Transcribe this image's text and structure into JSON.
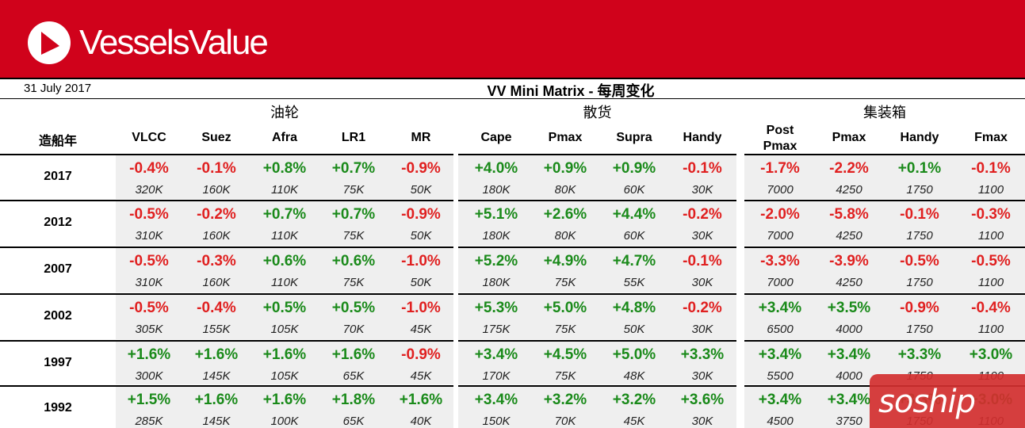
{
  "header": {
    "brand": "VesselsValue",
    "date": "31 July 2017",
    "title": "VV Mini Matrix - 每周变化"
  },
  "table": {
    "year_header": "造船年",
    "groups": [
      {
        "label": "油轮",
        "columns": [
          "VLCC",
          "Suez",
          "Afra",
          "LR1",
          "MR"
        ]
      },
      {
        "label": "散货",
        "columns": [
          "Cape",
          "Pmax",
          "Supra",
          "Handy"
        ]
      },
      {
        "label": "集装箱",
        "columns": [
          "Post\nPmax",
          "Pmax",
          "Handy",
          "Fmax"
        ]
      }
    ],
    "rows": [
      {
        "year": "2017",
        "tanker": [
          [
            "-0.4%",
            "320K"
          ],
          [
            "-0.1%",
            "160K"
          ],
          [
            "+0.8%",
            "110K"
          ],
          [
            "+0.7%",
            "75K"
          ],
          [
            "-0.9%",
            "50K"
          ]
        ],
        "bulk": [
          [
            "+4.0%",
            "180K"
          ],
          [
            "+0.9%",
            "80K"
          ],
          [
            "+0.9%",
            "60K"
          ],
          [
            "-0.1%",
            "30K"
          ]
        ],
        "container": [
          [
            "-1.7%",
            "7000"
          ],
          [
            "-2.2%",
            "4250"
          ],
          [
            "+0.1%",
            "1750"
          ],
          [
            "-0.1%",
            "1100"
          ]
        ]
      },
      {
        "year": "2012",
        "tanker": [
          [
            "-0.5%",
            "310K"
          ],
          [
            "-0.2%",
            "160K"
          ],
          [
            "+0.7%",
            "110K"
          ],
          [
            "+0.7%",
            "75K"
          ],
          [
            "-0.9%",
            "50K"
          ]
        ],
        "bulk": [
          [
            "+5.1%",
            "180K"
          ],
          [
            "+2.6%",
            "80K"
          ],
          [
            "+4.4%",
            "60K"
          ],
          [
            "-0.2%",
            "30K"
          ]
        ],
        "container": [
          [
            "-2.0%",
            "7000"
          ],
          [
            "-5.8%",
            "4250"
          ],
          [
            "-0.1%",
            "1750"
          ],
          [
            "-0.3%",
            "1100"
          ]
        ]
      },
      {
        "year": "2007",
        "tanker": [
          [
            "-0.5%",
            "310K"
          ],
          [
            "-0.3%",
            "160K"
          ],
          [
            "+0.6%",
            "110K"
          ],
          [
            "+0.6%",
            "75K"
          ],
          [
            "-1.0%",
            "50K"
          ]
        ],
        "bulk": [
          [
            "+5.2%",
            "180K"
          ],
          [
            "+4.9%",
            "75K"
          ],
          [
            "+4.7%",
            "55K"
          ],
          [
            "-0.1%",
            "30K"
          ]
        ],
        "container": [
          [
            "-3.3%",
            "7000"
          ],
          [
            "-3.9%",
            "4250"
          ],
          [
            "-0.5%",
            "1750"
          ],
          [
            "-0.5%",
            "1100"
          ]
        ]
      },
      {
        "year": "2002",
        "tanker": [
          [
            "-0.5%",
            "305K"
          ],
          [
            "-0.4%",
            "155K"
          ],
          [
            "+0.5%",
            "105K"
          ],
          [
            "+0.5%",
            "70K"
          ],
          [
            "-1.0%",
            "45K"
          ]
        ],
        "bulk": [
          [
            "+5.3%",
            "175K"
          ],
          [
            "+5.0%",
            "75K"
          ],
          [
            "+4.8%",
            "50K"
          ],
          [
            "-0.2%",
            "30K"
          ]
        ],
        "container": [
          [
            "+3.4%",
            "6500"
          ],
          [
            "+3.5%",
            "4000"
          ],
          [
            "-0.9%",
            "1750"
          ],
          [
            "-0.4%",
            "1100"
          ]
        ]
      },
      {
        "year": "1997",
        "tanker": [
          [
            "+1.6%",
            "300K"
          ],
          [
            "+1.6%",
            "145K"
          ],
          [
            "+1.6%",
            "105K"
          ],
          [
            "+1.6%",
            "65K"
          ],
          [
            "-0.9%",
            "45K"
          ]
        ],
        "bulk": [
          [
            "+3.4%",
            "170K"
          ],
          [
            "+4.5%",
            "75K"
          ],
          [
            "+5.0%",
            "48K"
          ],
          [
            "+3.3%",
            "30K"
          ]
        ],
        "container": [
          [
            "+3.4%",
            "5500"
          ],
          [
            "+3.4%",
            "4000"
          ],
          [
            "+3.3%",
            "1750"
          ],
          [
            "+3.0%",
            "1100"
          ]
        ]
      },
      {
        "year": "1992",
        "tanker": [
          [
            "+1.5%",
            "285K"
          ],
          [
            "+1.6%",
            "145K"
          ],
          [
            "+1.6%",
            "100K"
          ],
          [
            "+1.8%",
            "65K"
          ],
          [
            "+1.6%",
            "40K"
          ]
        ],
        "bulk": [
          [
            "+3.4%",
            "150K"
          ],
          [
            "+3.2%",
            "70K"
          ],
          [
            "+3.2%",
            "45K"
          ],
          [
            "+3.6%",
            "30K"
          ]
        ],
        "container": [
          [
            "+3.4%",
            "4500"
          ],
          [
            "+3.4%",
            "3750"
          ],
          [
            "+3.3%",
            "1750"
          ],
          [
            "+3.0%",
            "1100"
          ]
        ]
      }
    ]
  },
  "watermark": {
    "text": "soship"
  },
  "colors": {
    "banner": "#d0021b",
    "positive": "#1a8a1a",
    "negative": "#e02020"
  }
}
